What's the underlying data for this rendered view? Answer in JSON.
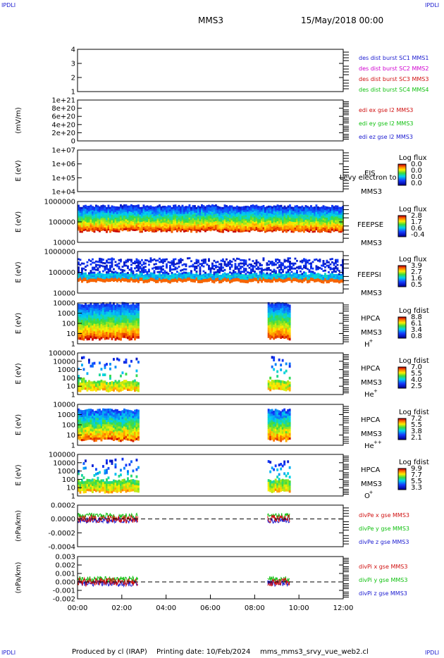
{
  "header": {
    "corner_label": "IPDLI",
    "spacecraft": "MMS3",
    "date": "15/May/2018 00:00"
  },
  "footer": {
    "producer": "Produced by cl (IRAP)",
    "printing_date": "Printing date: 10/Feb/2024",
    "filename": "mms_mms3_srvy_vue_web2.cl"
  },
  "colors": {
    "blue": "#1a1ad0",
    "magenta": "#d000d0",
    "red": "#d01010",
    "green": "#10c010"
  },
  "chart_data": {
    "type": "spectrogram-stack",
    "x_axis": {
      "range": [
        "00:00",
        "12:00"
      ],
      "tick_labels": [
        "00:00",
        "02:00",
        "04:00",
        "06:00",
        "08:00",
        "10:00",
        "12:00"
      ]
    },
    "panels": [
      {
        "id": "burst",
        "type": "line",
        "ylabel": "",
        "ylim": [
          1,
          4
        ],
        "ytick_labels": [
          "4",
          "3",
          "2",
          "1"
        ],
        "legend": [
          {
            "text": "des dist burst SC1 MMS1",
            "color": "blue"
          },
          {
            "text": "des dist burst SC2 MMS2",
            "color": "magenta"
          },
          {
            "text": "des dist burst SC3 MMS3",
            "color": "red"
          },
          {
            "text": "des dist burst SC4 MMS4",
            "color": "green"
          }
        ]
      },
      {
        "id": "edi",
        "type": "line",
        "ylabel": "(mV/m)",
        "ylim": [
          0,
          1e+21
        ],
        "ytick_labels": [
          "1e+21",
          "8e+20",
          "6e+20",
          "4e+20",
          "2e+20",
          "0"
        ],
        "zero_line": true,
        "legend": [
          {
            "text": "edi ex gse l2 MMS3",
            "color": "red"
          },
          {
            "text": "edi ey gse l2 MMS3",
            "color": "green"
          },
          {
            "text": "edi ez gse l2 MMS3",
            "color": "blue"
          }
        ]
      },
      {
        "id": "eis",
        "type": "heatmap",
        "ylabel": "E (eV)",
        "yscale": "log",
        "ylim": [
          10000,
          10000000
        ],
        "ytick_labels": [
          "1e+07",
          "1e+06",
          "1e+05",
          "1e+04"
        ],
        "instrument": [
          "EIS",
          "MMS3"
        ],
        "overlay_text": "Levy electron to",
        "colorbar": {
          "title": "Log flux",
          "ticks": [
            "0.0",
            "0.0",
            "0.0",
            "0.0"
          ]
        },
        "intervals": []
      },
      {
        "id": "feepse",
        "type": "heatmap",
        "ylabel": "E (eV)",
        "yscale": "log",
        "ylim": [
          10000,
          1000000
        ],
        "ytick_labels": [
          "1000000",
          "100000",
          "10000"
        ],
        "instrument": [
          "FEEPSE",
          "MMS3"
        ],
        "colorbar": {
          "title": "Log flux",
          "ticks": [
            "2.8",
            "1.7",
            "0.6",
            "-0.4"
          ]
        },
        "intervals": [
          [
            "00:00",
            "12:00"
          ]
        ]
      },
      {
        "id": "feepsi",
        "type": "heatmap",
        "ylabel": "E (eV)",
        "yscale": "log",
        "ylim": [
          10000,
          1000000
        ],
        "ytick_labels": [
          "1000000",
          "100000",
          "10000"
        ],
        "instrument": [
          "FEEPSI",
          "MMS3"
        ],
        "colorbar": {
          "title": "Log flux",
          "ticks": [
            "3.9",
            "2.7",
            "1.6",
            "0.5"
          ]
        },
        "intervals": [
          [
            "00:00",
            "12:00"
          ]
        ]
      },
      {
        "id": "hpca_h",
        "type": "heatmap",
        "ylabel": "E (eV)",
        "yscale": "log",
        "ylim": [
          1,
          10000
        ],
        "ytick_labels": [
          "10000",
          "1000",
          "100",
          "10",
          "1"
        ],
        "instrument": [
          "HPCA",
          "MMS3"
        ],
        "species": {
          "base": "H",
          "charge": "+"
        },
        "colorbar": {
          "title": "Log fdist",
          "ticks": [
            "8.8",
            "6.1",
            "3.4",
            "0.8"
          ]
        },
        "intervals": [
          [
            "00:00",
            "02:45"
          ],
          [
            "08:35",
            "09:35"
          ]
        ]
      },
      {
        "id": "hpca_he1",
        "type": "heatmap",
        "ylabel": "E (eV)",
        "yscale": "log",
        "ylim": [
          1,
          100000
        ],
        "ytick_labels": [
          "100000",
          "10000",
          "1000",
          "100",
          "10",
          "1"
        ],
        "instrument": [
          "HPCA",
          "MMS3"
        ],
        "species": {
          "base": "He",
          "charge": "+"
        },
        "colorbar": {
          "title": "Log fdist",
          "ticks": [
            "7.0",
            "5.5",
            "4.0",
            "2.5"
          ]
        },
        "intervals": [
          [
            "00:00",
            "02:45"
          ],
          [
            "08:35",
            "09:35"
          ]
        ]
      },
      {
        "id": "hpca_he2",
        "type": "heatmap",
        "ylabel": "E (eV)",
        "yscale": "log",
        "ylim": [
          1,
          10000
        ],
        "ytick_labels": [
          "10000",
          "1000",
          "100",
          "10",
          "1"
        ],
        "instrument": [
          "HPCA",
          "MMS3"
        ],
        "species": {
          "base": "He",
          "charge": "++"
        },
        "colorbar": {
          "title": "Log fdist",
          "ticks": [
            "7.2",
            "5.5",
            "3.8",
            "2.1"
          ]
        },
        "intervals": [
          [
            "00:00",
            "02:45"
          ],
          [
            "08:35",
            "09:35"
          ]
        ]
      },
      {
        "id": "hpca_o",
        "type": "heatmap",
        "ylabel": "E (eV)",
        "yscale": "log",
        "ylim": [
          1,
          100000
        ],
        "ytick_labels": [
          "100000",
          "10000",
          "1000",
          "100",
          "10",
          "1"
        ],
        "instrument": [
          "HPCA",
          "MMS3"
        ],
        "species": {
          "base": "O",
          "charge": "+"
        },
        "colorbar": {
          "title": "Log fdist",
          "ticks": [
            "9.9",
            "7.7",
            "5.5",
            "3.3"
          ]
        },
        "intervals": [
          [
            "00:00",
            "02:45"
          ],
          [
            "08:35",
            "09:35"
          ]
        ]
      },
      {
        "id": "divpe",
        "type": "line",
        "ylabel": "(nPa/km)",
        "ylim": [
          -0.0004,
          0.0002
        ],
        "ytick_labels": [
          "0.0002",
          "0.0000",
          "-0.0002",
          "-0.0004"
        ],
        "zero_line": true,
        "intervals": [
          [
            "00:00",
            "02:45"
          ],
          [
            "08:35",
            "09:35"
          ]
        ],
        "legend": [
          {
            "text": "divPe x gse MMS3",
            "color": "red"
          },
          {
            "text": "divPe y gse MMS3",
            "color": "green"
          },
          {
            "text": "divPe z gse MMS3",
            "color": "blue"
          }
        ]
      },
      {
        "id": "divpi",
        "type": "line",
        "ylabel": "(nPa/km)",
        "ylim": [
          -0.002,
          0.003
        ],
        "ytick_labels": [
          "0.003",
          "0.002",
          "0.001",
          "0.000",
          "-0.001",
          "-0.002"
        ],
        "zero_line": true,
        "intervals": [
          [
            "00:00",
            "02:45"
          ],
          [
            "08:35",
            "09:35"
          ]
        ],
        "legend": [
          {
            "text": "divPi x gse MMS3",
            "color": "red"
          },
          {
            "text": "divPi y gse MMS3",
            "color": "green"
          },
          {
            "text": "divPi z gse MMS3",
            "color": "blue"
          }
        ]
      }
    ]
  }
}
